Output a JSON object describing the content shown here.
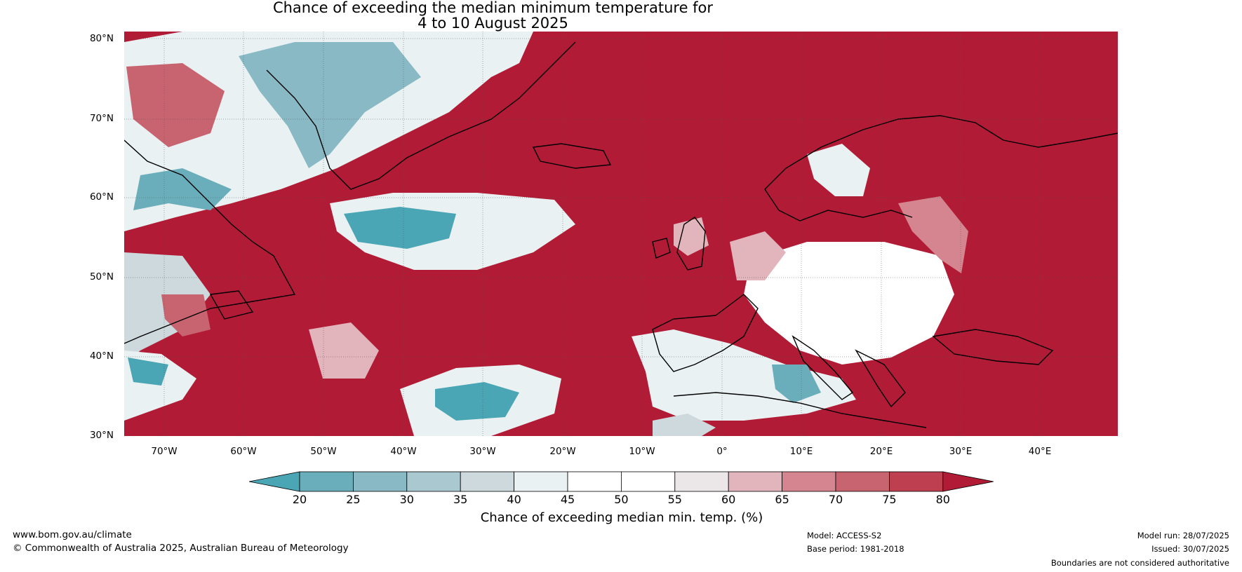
{
  "title": {
    "line1": "Chance of exceeding the median minimum temperature for",
    "line2": "4 to 10 August 2025"
  },
  "lat_labels": [
    "80°N",
    "70°N",
    "60°N",
    "50°N",
    "40°N",
    "30°N"
  ],
  "lon_labels": [
    "70°W",
    "60°W",
    "50°W",
    "40°W",
    "30°W",
    "20°W",
    "10°W",
    "0°",
    "10°E",
    "20°E",
    "30°E",
    "40°E"
  ],
  "colorbar": {
    "ticks": [
      "20",
      "25",
      "30",
      "35",
      "40",
      "45",
      "50",
      "55",
      "60",
      "65",
      "70",
      "75",
      "80"
    ],
    "colors": [
      "#4aa5b5",
      "#6aaebb",
      "#88b9c5",
      "#a9c8d0",
      "#cdd9dd",
      "#e9f1f2",
      "#ffffff",
      "#ffffff",
      "#ebe6e8",
      "#e2b4bc",
      "#d58590",
      "#c86370",
      "#bd3f50",
      "#b11b35"
    ],
    "title": "Chance of exceeding median min. temp. (%)"
  },
  "footer": {
    "url": "www.bom.gov.au/climate",
    "copyright": "© Commonwealth of Australia 2025, Australian Bureau of Meteorology",
    "model": "Model: ACCESS-S2",
    "base_period": "Base period: 1981-2018",
    "model_run": "Model run: 28/07/2025",
    "issued": "Issued: 30/07/2025",
    "boundaries": "Boundaries are not considered authoritative"
  }
}
